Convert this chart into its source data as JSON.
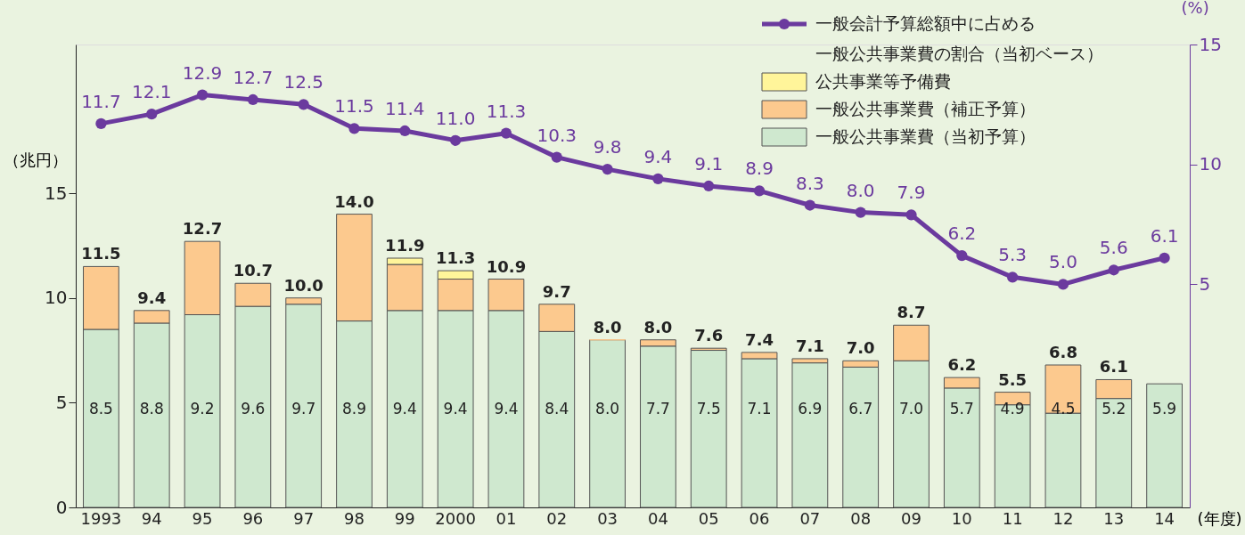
{
  "chart_data": {
    "type": "bar",
    "stacked": true,
    "categories": [
      "1993",
      "94",
      "95",
      "96",
      "97",
      "98",
      "99",
      "2000",
      "01",
      "02",
      "03",
      "04",
      "05",
      "06",
      "07",
      "08",
      "09",
      "10",
      "11",
      "12",
      "13",
      "14"
    ],
    "series": [
      {
        "name": "一般公共事業費（当初予算）",
        "color": "#cfe8cf",
        "values": [
          8.5,
          8.8,
          9.2,
          9.6,
          9.7,
          8.9,
          9.4,
          9.4,
          9.4,
          8.4,
          8.0,
          7.7,
          7.5,
          7.1,
          6.9,
          6.7,
          7.0,
          5.7,
          4.9,
          4.5,
          5.2,
          5.9
        ],
        "value_labels": [
          "8.5",
          "8.8",
          "9.2",
          "9.6",
          "9.7",
          "8.9",
          "9.4",
          "9.4",
          "9.4",
          "8.4",
          "8.0",
          "7.7",
          "7.5",
          "7.1",
          "6.9",
          "6.7",
          "7.0",
          "5.7",
          "4.9",
          "4.5",
          "5.2",
          "5.9"
        ]
      },
      {
        "name": "一般公共事業費（補正予算）",
        "color": "#fcc98e",
        "values": [
          3.0,
          0.6,
          3.5,
          1.1,
          0.3,
          5.1,
          2.2,
          1.5,
          1.5,
          1.3,
          0,
          0.3,
          0.1,
          0.3,
          0.2,
          0.3,
          1.7,
          0.5,
          0.6,
          2.3,
          0.9,
          null
        ]
      },
      {
        "name": "公共事業等予備費",
        "color": "#fff59a",
        "values": [
          null,
          null,
          null,
          null,
          null,
          null,
          0.3,
          0.4,
          null,
          null,
          null,
          null,
          null,
          null,
          null,
          null,
          null,
          null,
          null,
          null,
          null,
          null
        ]
      },
      {
        "name": "一般会計予算総額中に占める一般公共事業費の割合（当初ベース）",
        "type": "line",
        "axis": "y2",
        "marker": "circle",
        "color": "#6b3a9e",
        "values": [
          11.7,
          12.1,
          12.9,
          12.7,
          12.5,
          11.5,
          11.4,
          11.0,
          11.3,
          10.3,
          9.8,
          9.4,
          9.1,
          8.9,
          8.3,
          8.0,
          7.9,
          6.2,
          5.3,
          5.0,
          5.6,
          6.1
        ],
        "value_labels": [
          "11.7",
          "12.1",
          "12.9",
          "12.7",
          "12.5",
          "11.5",
          "11.4",
          "11.0",
          "11.3",
          "10.3",
          "9.8",
          "9.4",
          "9.1",
          "8.9",
          "8.3",
          "8.0",
          "7.9",
          "6.2",
          "5.3",
          "5.0",
          "5.6",
          "6.1"
        ]
      }
    ],
    "totals": [
      "11.5",
      "9.4",
      "12.7",
      "10.7",
      "10.0",
      "14.0",
      "11.9",
      "11.3",
      "10.9",
      "9.7",
      "8.0",
      "8.0",
      "7.6",
      "7.4",
      "7.1",
      "7.0",
      "8.7",
      "6.2",
      "5.5",
      "6.8",
      "6.1",
      null
    ],
    "ylim": [
      0,
      22.1
    ],
    "yticks": [
      0,
      5,
      10,
      15
    ],
    "ylabel": "（兆円）",
    "y2lim": [
      -4.3,
      15
    ],
    "y2ticks": [
      5,
      10,
      15
    ],
    "y2label": "(%)",
    "xlabel": "(年度)",
    "legend": "top right",
    "grid": false
  }
}
